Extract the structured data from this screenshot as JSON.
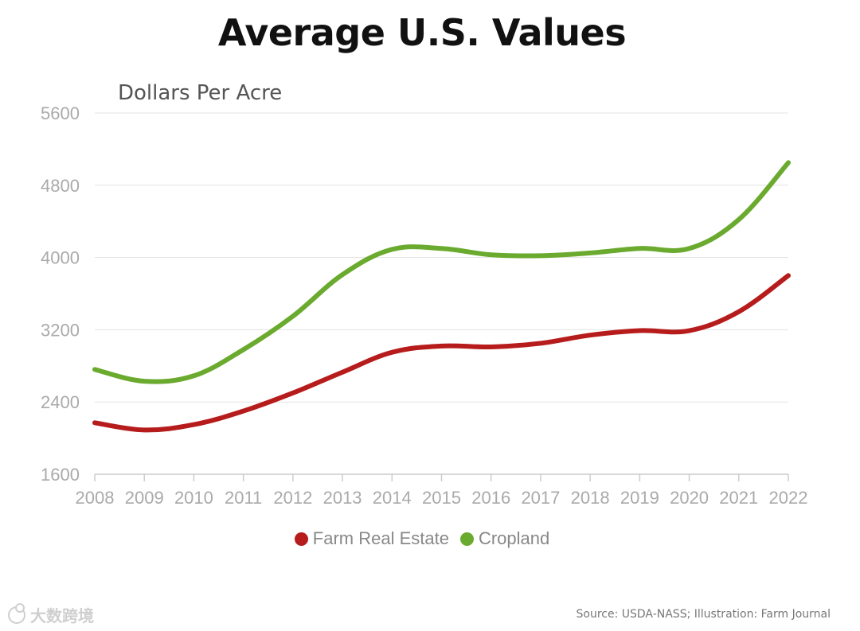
{
  "chart_data": {
    "type": "line",
    "title": "Average U.S. Values",
    "ylabel": "Dollars Per Acre",
    "xlabel": "",
    "x": [
      2008,
      2009,
      2010,
      2011,
      2012,
      2013,
      2014,
      2015,
      2016,
      2017,
      2018,
      2019,
      2020,
      2021,
      2022
    ],
    "xticks": [
      "2008",
      "2009",
      "2010",
      "2011",
      "2012",
      "2013",
      "2014",
      "2015",
      "2016",
      "2017",
      "2018",
      "2019",
      "2020",
      "2021",
      "2022"
    ],
    "yticks": [
      "1600",
      "2400",
      "3200",
      "4000",
      "4800",
      "5600"
    ],
    "ylim": [
      1600,
      5600
    ],
    "grid": true,
    "legend_position": "bottom-center",
    "series": [
      {
        "name": "Farm Real Estate",
        "color": "#b71c1c",
        "values": [
          2170,
          2090,
          2150,
          2300,
          2500,
          2730,
          2950,
          3020,
          3010,
          3050,
          3140,
          3190,
          3190,
          3400,
          3800
        ]
      },
      {
        "name": "Cropland",
        "color": "#6aaa2e",
        "values": [
          2760,
          2630,
          2690,
          2980,
          3350,
          3810,
          4090,
          4100,
          4030,
          4020,
          4050,
          4100,
          4100,
          4420,
          5050
        ]
      }
    ]
  },
  "footer": {
    "source": "Source: USDA-NASS; Illustration: Farm Journal",
    "watermark": "大数跨境"
  }
}
